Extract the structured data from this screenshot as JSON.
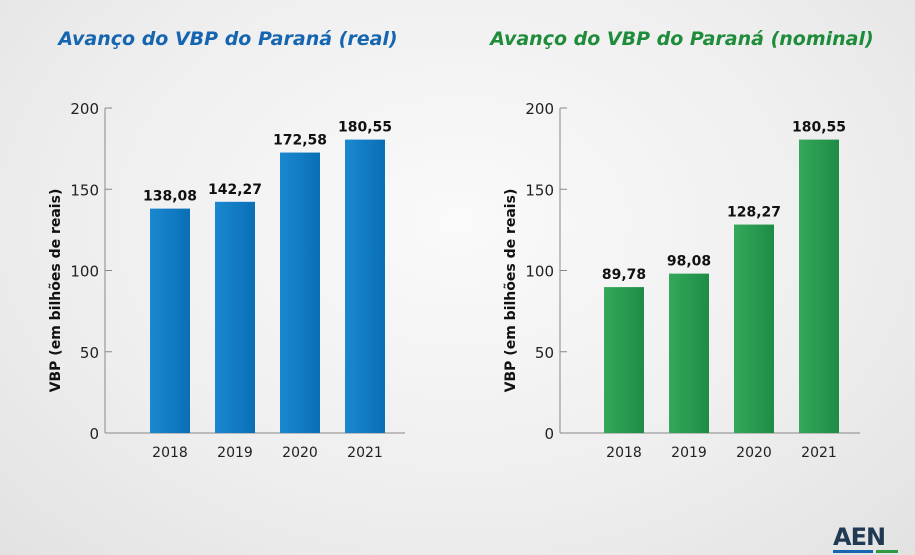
{
  "chart_data": [
    {
      "type": "bar",
      "title": "Avanço do VBP do Paraná (real)",
      "ylabel": "VBP (em bilhões de reais)",
      "xlabel": "",
      "categories": [
        "2018",
        "2019",
        "2020",
        "2021"
      ],
      "values": [
        138.08,
        142.27,
        172.58,
        180.55
      ],
      "data_labels": [
        "138,08",
        "142,27",
        "172,58",
        "180,55"
      ],
      "ylim": [
        0,
        200
      ],
      "yticks": [
        0,
        50,
        100,
        150,
        200
      ],
      "grid": false,
      "color": "#0a6fb5",
      "title_color": "#1565b0"
    },
    {
      "type": "bar",
      "title": "Avanço do VBP do Paraná (nominal)",
      "ylabel": "VBP (em bilhões de reais)",
      "xlabel": "",
      "categories": [
        "2018",
        "2019",
        "2020",
        "2021"
      ],
      "values": [
        89.78,
        98.08,
        128.27,
        180.55
      ],
      "data_labels": [
        "89,78",
        "98,08",
        "128,27",
        "180,55"
      ],
      "ylim": [
        0,
        200
      ],
      "yticks": [
        0,
        50,
        100,
        150,
        200
      ],
      "grid": false,
      "color": "#1e8c45",
      "title_color": "#1e8c3a"
    }
  ],
  "logo": {
    "text": "AEN",
    "colors": [
      "#1f3a52",
      "#1565b0",
      "#2e9a44"
    ]
  }
}
